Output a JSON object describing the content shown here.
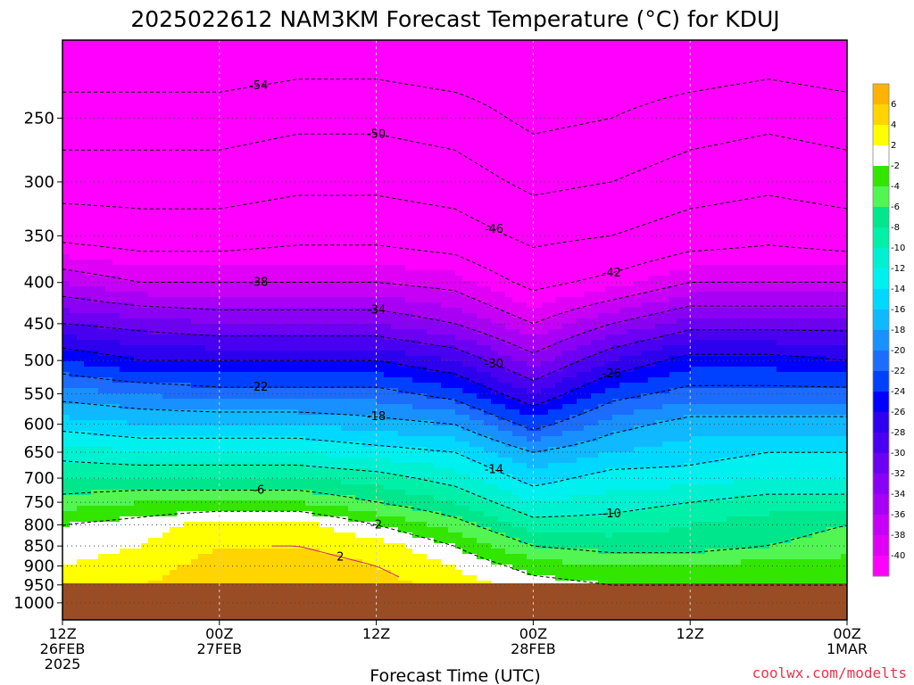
{
  "chart_data": {
    "type": "heatmap",
    "title": "2025022612  NAM3KM Forecast Temperature (°C) for KDUJ",
    "xlabel": "Forecast Time (UTC)",
    "ylabel": "",
    "credit": "coolwx.com/modelts",
    "x_axis": {
      "unit": "hours",
      "range": [
        0,
        60
      ],
      "ticks": [
        {
          "hour": 0,
          "lines": [
            "12Z",
            "26FEB",
            "2025"
          ]
        },
        {
          "hour": 12,
          "lines": [
            "00Z",
            "27FEB"
          ]
        },
        {
          "hour": 24,
          "lines": [
            "12Z"
          ]
        },
        {
          "hour": 36,
          "lines": [
            "00Z",
            "28FEB"
          ]
        },
        {
          "hour": 48,
          "lines": [
            "12Z"
          ]
        },
        {
          "hour": 60,
          "lines": [
            "00Z",
            "1MAR"
          ]
        }
      ]
    },
    "y_axis": {
      "unit": "hPa",
      "scale": "log",
      "range": [
        1050,
        200
      ],
      "ticks": [
        250,
        300,
        350,
        400,
        450,
        500,
        550,
        600,
        650,
        700,
        750,
        800,
        850,
        900,
        950,
        1000
      ]
    },
    "surface_pressure_hpa": 950,
    "colorbar": {
      "labels": [
        "6",
        "4",
        "2",
        "-2",
        "-4",
        "-6",
        "-8",
        "-10",
        "-12",
        "-14",
        "-16",
        "-18",
        "-20",
        "-22",
        "-24",
        "-26",
        "-28",
        "-30",
        "-32",
        "-34",
        "-36",
        "-38",
        "-40"
      ],
      "colors": [
        "#ffb300",
        "#ffd400",
        "#ffff00",
        "#ffffff",
        "#33e600",
        "#52f552",
        "#00e68c",
        "#00f0a8",
        "#00f0d2",
        "#00f0f0",
        "#00d8ff",
        "#10b8ff",
        "#1890ff",
        "#1c6cff",
        "#0040ff",
        "#0000ff",
        "#2d00ee",
        "#4a00f0",
        "#6d00f2",
        "#8a00f5",
        "#a800f5",
        "#c600f7",
        "#e000f5",
        "#ff00ff"
      ]
    },
    "isotherms": [
      {
        "label": "-54",
        "points": [
          [
            0,
            -60
          ],
          [
            6,
            -59
          ],
          [
            12,
            -60
          ],
          [
            18,
            -59
          ],
          [
            24,
            -58
          ],
          [
            30,
            -59
          ],
          [
            36,
            -60
          ],
          [
            42,
            -60
          ],
          [
            48,
            -59
          ],
          [
            54,
            -56
          ],
          [
            60,
            -58
          ]
        ]
      },
      {
        "label": "-50",
        "points": [
          [
            0,
            -54
          ],
          [
            6,
            -53
          ],
          [
            12,
            -53
          ],
          [
            18,
            -52
          ],
          [
            24,
            -52
          ],
          [
            30,
            -53
          ],
          [
            36,
            -57
          ],
          [
            42,
            -55
          ],
          [
            48,
            -53
          ],
          [
            54,
            -52
          ],
          [
            60,
            -54
          ]
        ]
      },
      {
        "label": "-46",
        "points": [
          [
            0,
            -48
          ],
          [
            6,
            -48
          ],
          [
            12,
            -49
          ],
          [
            18,
            -49
          ],
          [
            24,
            -49
          ],
          [
            30,
            -50
          ],
          [
            36,
            -52
          ],
          [
            42,
            -51
          ],
          [
            48,
            -50
          ],
          [
            54,
            -49
          ],
          [
            60,
            -50
          ]
        ]
      },
      {
        "label": "-42",
        "points": [
          [
            0,
            -43
          ],
          [
            6,
            -43
          ],
          [
            12,
            -44
          ],
          [
            18,
            -44
          ],
          [
            24,
            -44
          ],
          [
            30,
            -45
          ],
          [
            36,
            -47
          ],
          [
            42,
            -47
          ],
          [
            48,
            -45
          ],
          [
            54,
            -44
          ],
          [
            60,
            -44
          ]
        ]
      },
      {
        "label": "-38",
        "points": [
          [
            0,
            -38
          ],
          [
            6,
            -38
          ],
          [
            12,
            -39
          ],
          [
            18,
            -39
          ],
          [
            24,
            -39
          ],
          [
            30,
            -40
          ],
          [
            36,
            -42
          ],
          [
            42,
            -42
          ],
          [
            48,
            -40
          ],
          [
            54,
            -39
          ],
          [
            60,
            -39
          ]
        ]
      },
      {
        "label": "-34",
        "points": [
          [
            0,
            -34
          ],
          [
            6,
            -34
          ],
          [
            12,
            -35
          ],
          [
            18,
            -35
          ],
          [
            24,
            -35
          ],
          [
            30,
            -36
          ],
          [
            36,
            -38
          ],
          [
            42,
            -37
          ],
          [
            48,
            -35
          ],
          [
            54,
            -35
          ],
          [
            60,
            -35
          ]
        ]
      },
      {
        "label": "-30",
        "points": [
          [
            0,
            -30
          ],
          [
            6,
            -30
          ],
          [
            12,
            -31
          ],
          [
            18,
            -31
          ],
          [
            24,
            -31
          ],
          [
            30,
            -32
          ],
          [
            36,
            -34
          ],
          [
            42,
            -33
          ],
          [
            48,
            -31
          ],
          [
            54,
            -31
          ],
          [
            60,
            -31
          ]
        ]
      },
      {
        "label": "-26",
        "points": [
          [
            0,
            -26
          ],
          [
            6,
            -26
          ],
          [
            12,
            -27
          ],
          [
            18,
            -27
          ],
          [
            24,
            -27
          ],
          [
            30,
            -28
          ],
          [
            36,
            -30
          ],
          [
            42,
            -29
          ],
          [
            48,
            -27
          ],
          [
            54,
            -27
          ],
          [
            60,
            -27
          ]
        ]
      },
      {
        "label": "-22",
        "points": [
          [
            0,
            -22
          ],
          [
            6,
            -22
          ],
          [
            12,
            -23
          ],
          [
            18,
            -23
          ],
          [
            24,
            -23
          ],
          [
            30,
            -24
          ],
          [
            36,
            -26
          ],
          [
            42,
            -24
          ],
          [
            48,
            -23
          ],
          [
            54,
            -23
          ],
          [
            60,
            -23
          ]
        ]
      },
      {
        "label": "-18",
        "points": [
          [
            0,
            -18
          ],
          [
            6,
            -18
          ],
          [
            12,
            -19
          ],
          [
            18,
            -19
          ],
          [
            24,
            -19
          ],
          [
            30,
            -20
          ],
          [
            36,
            -22
          ],
          [
            42,
            -20
          ],
          [
            48,
            -19
          ],
          [
            54,
            -19
          ],
          [
            60,
            -19
          ]
        ]
      },
      {
        "label": "-14",
        "points": [
          [
            0,
            -14
          ],
          [
            6,
            -14
          ],
          [
            12,
            -15
          ],
          [
            18,
            -15
          ],
          [
            24,
            -15
          ],
          [
            30,
            -16
          ],
          [
            36,
            -18
          ],
          [
            42,
            -16
          ],
          [
            48,
            -16
          ],
          [
            54,
            -15
          ],
          [
            60,
            -15
          ]
        ]
      },
      {
        "label": "-10",
        "points": [
          [
            0,
            -10
          ],
          [
            6,
            -10
          ],
          [
            12,
            -11
          ],
          [
            18,
            -11
          ],
          [
            24,
            -11
          ],
          [
            30,
            -12
          ],
          [
            36,
            -14
          ],
          [
            42,
            -13
          ],
          [
            48,
            -13
          ],
          [
            54,
            -12
          ],
          [
            60,
            -12
          ]
        ]
      },
      {
        "label": "-6",
        "points": [
          [
            0,
            -6
          ],
          [
            6,
            -6
          ],
          [
            12,
            -7
          ],
          [
            18,
            -7
          ],
          [
            24,
            -7
          ],
          [
            30,
            -8
          ],
          [
            36,
            -10
          ],
          [
            42,
            -9
          ],
          [
            48,
            -9
          ],
          [
            54,
            -8
          ],
          [
            60,
            -8
          ]
        ]
      },
      {
        "label": "-2",
        "points": [
          [
            0,
            -2
          ],
          [
            6,
            -2
          ],
          [
            12,
            -3
          ],
          [
            18,
            -3
          ],
          [
            24,
            -3
          ],
          [
            30,
            -4
          ],
          [
            36,
            -6
          ],
          [
            42,
            -5
          ],
          [
            48,
            -5
          ],
          [
            54,
            -4
          ],
          [
            60,
            -4
          ]
        ]
      },
      {
        "label": "2",
        "points": [
          [
            16,
            1
          ],
          [
            18,
            2
          ],
          [
            20,
            2
          ],
          [
            22,
            1.5
          ],
          [
            24,
            1.5
          ],
          [
            26,
            1
          ]
        ]
      }
    ],
    "temperature_grid": {
      "hours": [
        0,
        6,
        12,
        18,
        24,
        30,
        36,
        42,
        48,
        54,
        60
      ],
      "levels_hpa": [
        200,
        250,
        300,
        350,
        400,
        450,
        500,
        550,
        600,
        650,
        700,
        750,
        800,
        850,
        900,
        950
      ],
      "values": [
        [
          -58,
          -58,
          -58,
          -57,
          -57,
          -58,
          -58,
          -58,
          -58,
          -57,
          -58
        ],
        [
          -52,
          -52,
          -52,
          -51,
          -51,
          -52,
          -55,
          -54,
          -52,
          -51,
          -52
        ],
        [
          -48,
          -48,
          -48,
          -47,
          -47,
          -48,
          -51,
          -50,
          -48,
          -47,
          -48
        ],
        [
          -43,
          -44,
          -44,
          -43,
          -43,
          -44,
          -47,
          -46,
          -44,
          -43,
          -44
        ],
        [
          -36,
          -38,
          -38,
          -38,
          -38,
          -39,
          -43,
          -41,
          -38,
          -38,
          -38
        ],
        [
          -30,
          -31,
          -32,
          -32,
          -32,
          -34,
          -38,
          -34,
          -31,
          -31,
          -31
        ],
        [
          -24,
          -26,
          -26,
          -26,
          -26,
          -28,
          -33,
          -28,
          -25,
          -25,
          -26
        ],
        [
          -19,
          -20,
          -21,
          -21,
          -21,
          -23,
          -28,
          -23,
          -21,
          -21,
          -21
        ],
        [
          -15,
          -16,
          -16,
          -16,
          -17,
          -18,
          -23,
          -19,
          -17,
          -17,
          -17
        ],
        [
          -11,
          -12,
          -12,
          -12,
          -13,
          -14,
          -18,
          -16,
          -15,
          -14,
          -14
        ],
        [
          -8,
          -8,
          -8,
          -8,
          -9,
          -11,
          -15,
          -13,
          -13,
          -12,
          -12
        ],
        [
          -5,
          -4,
          -4,
          -4,
          -6,
          -8,
          -12,
          -11,
          -10,
          -9,
          -9
        ],
        [
          -2,
          -1,
          1,
          1,
          -2,
          -5,
          -9,
          -9,
          -8,
          -7,
          -6
        ],
        [
          -1,
          0,
          2,
          2,
          1,
          -2,
          -6,
          -7,
          -7,
          -6,
          -5
        ],
        [
          0,
          1,
          3,
          3,
          2,
          0,
          -3,
          -4,
          -4,
          -3,
          -3
        ],
        [
          1,
          2,
          3,
          3,
          3,
          1,
          -1,
          -2,
          -2,
          -2,
          -2
        ]
      ]
    }
  }
}
